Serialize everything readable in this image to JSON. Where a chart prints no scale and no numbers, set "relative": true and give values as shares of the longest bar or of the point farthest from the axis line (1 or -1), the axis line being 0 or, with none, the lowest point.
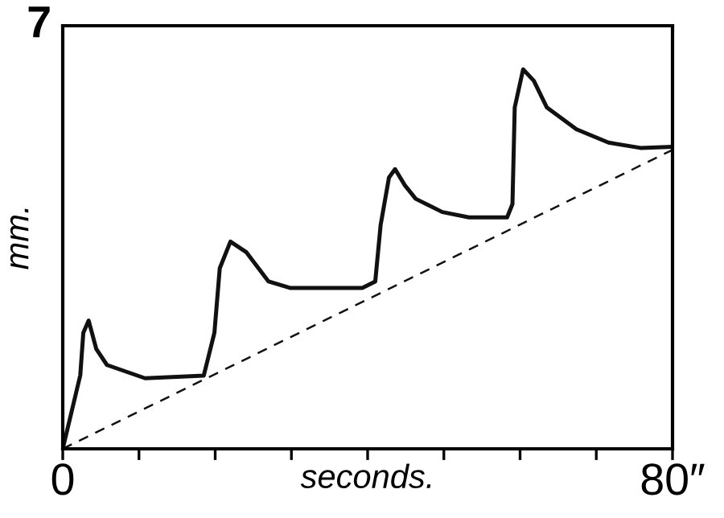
{
  "chart_data": {
    "type": "line",
    "xlabel": "seconds.",
    "ylabel": "mm.",
    "relative": true,
    "annotations": [
      "7"
    ],
    "xlim": [
      0,
      80
    ],
    "xticks": [
      {
        "value": 0,
        "label": "0"
      },
      {
        "value": 10,
        "label": null
      },
      {
        "value": 20,
        "label": null
      },
      {
        "value": 30,
        "label": null
      },
      {
        "value": 40,
        "label": null
      },
      {
        "value": 50,
        "label": null
      },
      {
        "value": 60,
        "label": null
      },
      {
        "value": 70,
        "label": null
      },
      {
        "value": 80,
        "label": "80″"
      }
    ],
    "grid": false,
    "legend": false,
    "marker": "none",
    "series": [
      {
        "color": "#111111",
        "line_style": "solid",
        "x": [
          0,
          2.3,
          2.7,
          3.4,
          4.4,
          5.8,
          10.8,
          18.5,
          19.9,
          20.6,
          22.0,
          24.1,
          27.0,
          29.8,
          39.3,
          41.0,
          41.7,
          42.8,
          43.6,
          44.9,
          46.3,
          49.8,
          53.3,
          58.3,
          59.0,
          59.3,
          60.4,
          61.8,
          63.5,
          67.4,
          71.6,
          75.8,
          80
        ],
        "values": [
          0,
          0.194,
          0.306,
          0.338,
          0.263,
          0.221,
          0.186,
          0.193,
          0.306,
          0.476,
          0.546,
          0.518,
          0.441,
          0.424,
          0.424,
          0.441,
          0.589,
          0.715,
          0.737,
          0.694,
          0.659,
          0.624,
          0.61,
          0.61,
          0.645,
          0.9,
          1,
          0.97,
          0.9,
          0.842,
          0.807,
          0.793,
          0.796
        ]
      },
      {
        "color": "#111111",
        "line_style": "dashed",
        "x": [
          0,
          80
        ],
        "values": [
          0,
          0.788
        ]
      }
    ]
  }
}
